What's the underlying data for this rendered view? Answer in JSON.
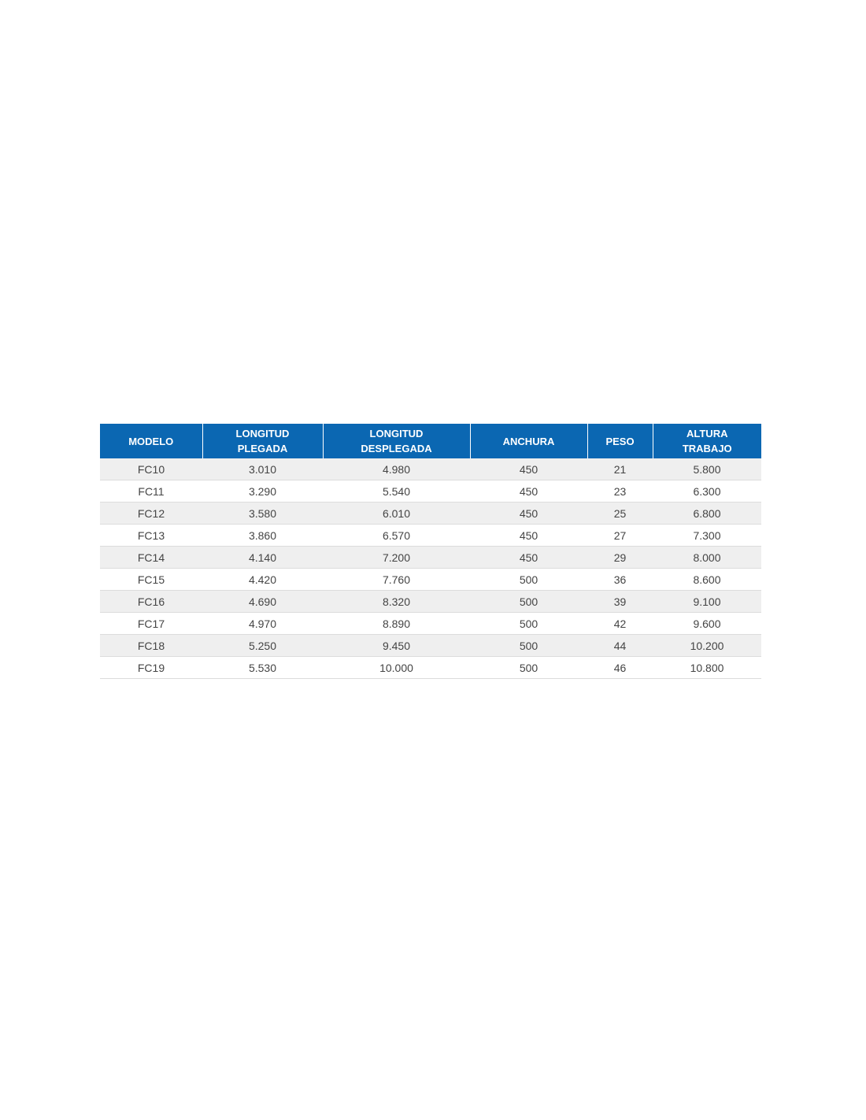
{
  "table": {
    "headers": [
      [
        "MODELO",
        ""
      ],
      [
        "LONGITUD",
        "PLEGADA"
      ],
      [
        "LONGITUD",
        "DESPLEGADA"
      ],
      [
        "ANCHURA",
        ""
      ],
      [
        "PESO",
        ""
      ],
      [
        "ALTURA",
        "TRABAJO"
      ]
    ],
    "rows": [
      [
        "FC10",
        "3.010",
        "4.980",
        "450",
        "21",
        "5.800"
      ],
      [
        "FC11",
        "3.290",
        "5.540",
        "450",
        "23",
        "6.300"
      ],
      [
        "FC12",
        "3.580",
        "6.010",
        "450",
        "25",
        "6.800"
      ],
      [
        "FC13",
        "3.860",
        "6.570",
        "450",
        "27",
        "7.300"
      ],
      [
        "FC14",
        "4.140",
        "7.200",
        "450",
        "29",
        "8.000"
      ],
      [
        "FC15",
        "4.420",
        "7.760",
        "500",
        "36",
        "8.600"
      ],
      [
        "FC16",
        "4.690",
        "8.320",
        "500",
        "39",
        "9.100"
      ],
      [
        "FC17",
        "4.970",
        "8.890",
        "500",
        "42",
        "9.600"
      ],
      [
        "FC18",
        "5.250",
        "9.450",
        "500",
        "44",
        "10.200"
      ],
      [
        "FC19",
        "5.530",
        "10.000",
        "500",
        "46",
        "10.800"
      ]
    ]
  },
  "colors": {
    "header_bg": "#0b67b2",
    "header_text": "#ffffff",
    "stripe": "#efefef"
  }
}
